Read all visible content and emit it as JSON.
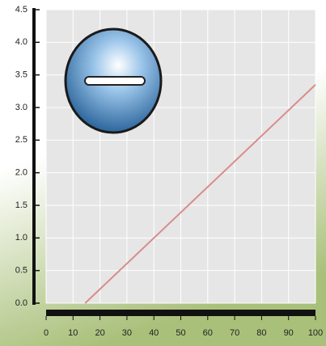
{
  "chart_data": {
    "type": "line",
    "x": [
      14.5,
      100
    ],
    "values": [
      0,
      3.35
    ],
    "color": "#d98c8c",
    "xlim": [
      0,
      100
    ],
    "xticks": [
      0,
      10,
      20,
      30,
      40,
      50,
      60,
      70,
      80,
      90,
      100
    ],
    "ylim": [
      0,
      4.5
    ],
    "yticks": [
      {
        "value": 0,
        "label": "0.0"
      },
      0.5,
      {
        "value": 1,
        "label": "1.0"
      },
      1.5,
      {
        "value": 2,
        "label": "2.0"
      },
      2.5,
      {
        "value": 3,
        "label": "3.0"
      },
      3.5,
      {
        "value": 4,
        "label": "4.0"
      },
      4.5
    ],
    "grid": true
  }
}
